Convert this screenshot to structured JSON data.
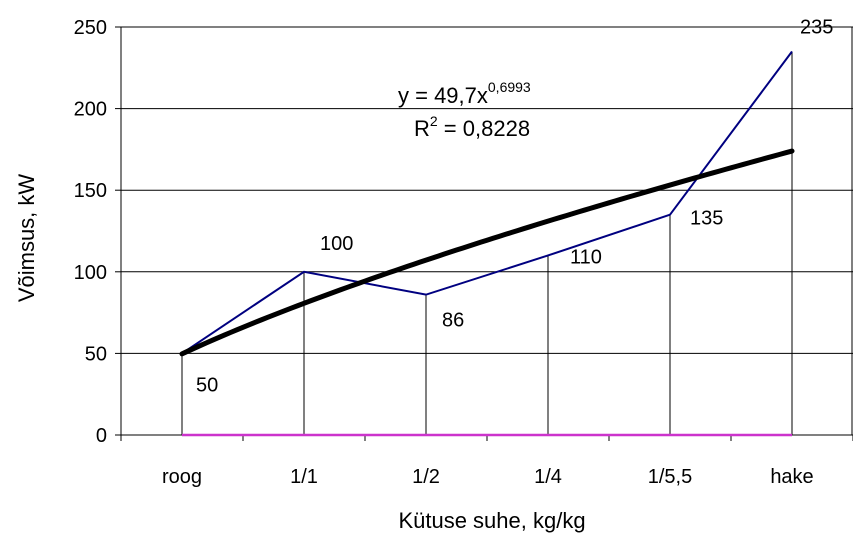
{
  "chart_data": {
    "type": "line",
    "categories": [
      "roog",
      "1/1",
      "1/2",
      "1/4",
      "1/5,5",
      "hake"
    ],
    "series": [
      {
        "values": [
          50,
          100,
          86,
          110,
          135,
          235
        ],
        "data_labels": [
          "50",
          "100",
          "86",
          "110",
          "135",
          "235"
        ],
        "color": "#000080"
      },
      {
        "values": [
          0,
          0,
          0,
          0,
          0,
          0
        ],
        "color": "#cc33cc"
      }
    ],
    "trendline": {
      "type": "power",
      "a": 49.7,
      "b": 0.6993,
      "color": "#000000",
      "equation_base": "y = 49,7x",
      "equation_exponent": "0,6993",
      "r2_base": "R",
      "r2_exponent": "2",
      "r2_rest": " = 0,8228"
    },
    "xlabel": "Kütuse suhe, kg/kg",
    "ylabel": "Võimsus, kW",
    "ylim": [
      0,
      250
    ],
    "yticks": [
      0,
      50,
      100,
      150,
      200,
      250
    ],
    "grid": "horizontal",
    "drop_lines": true,
    "legend": "none"
  }
}
